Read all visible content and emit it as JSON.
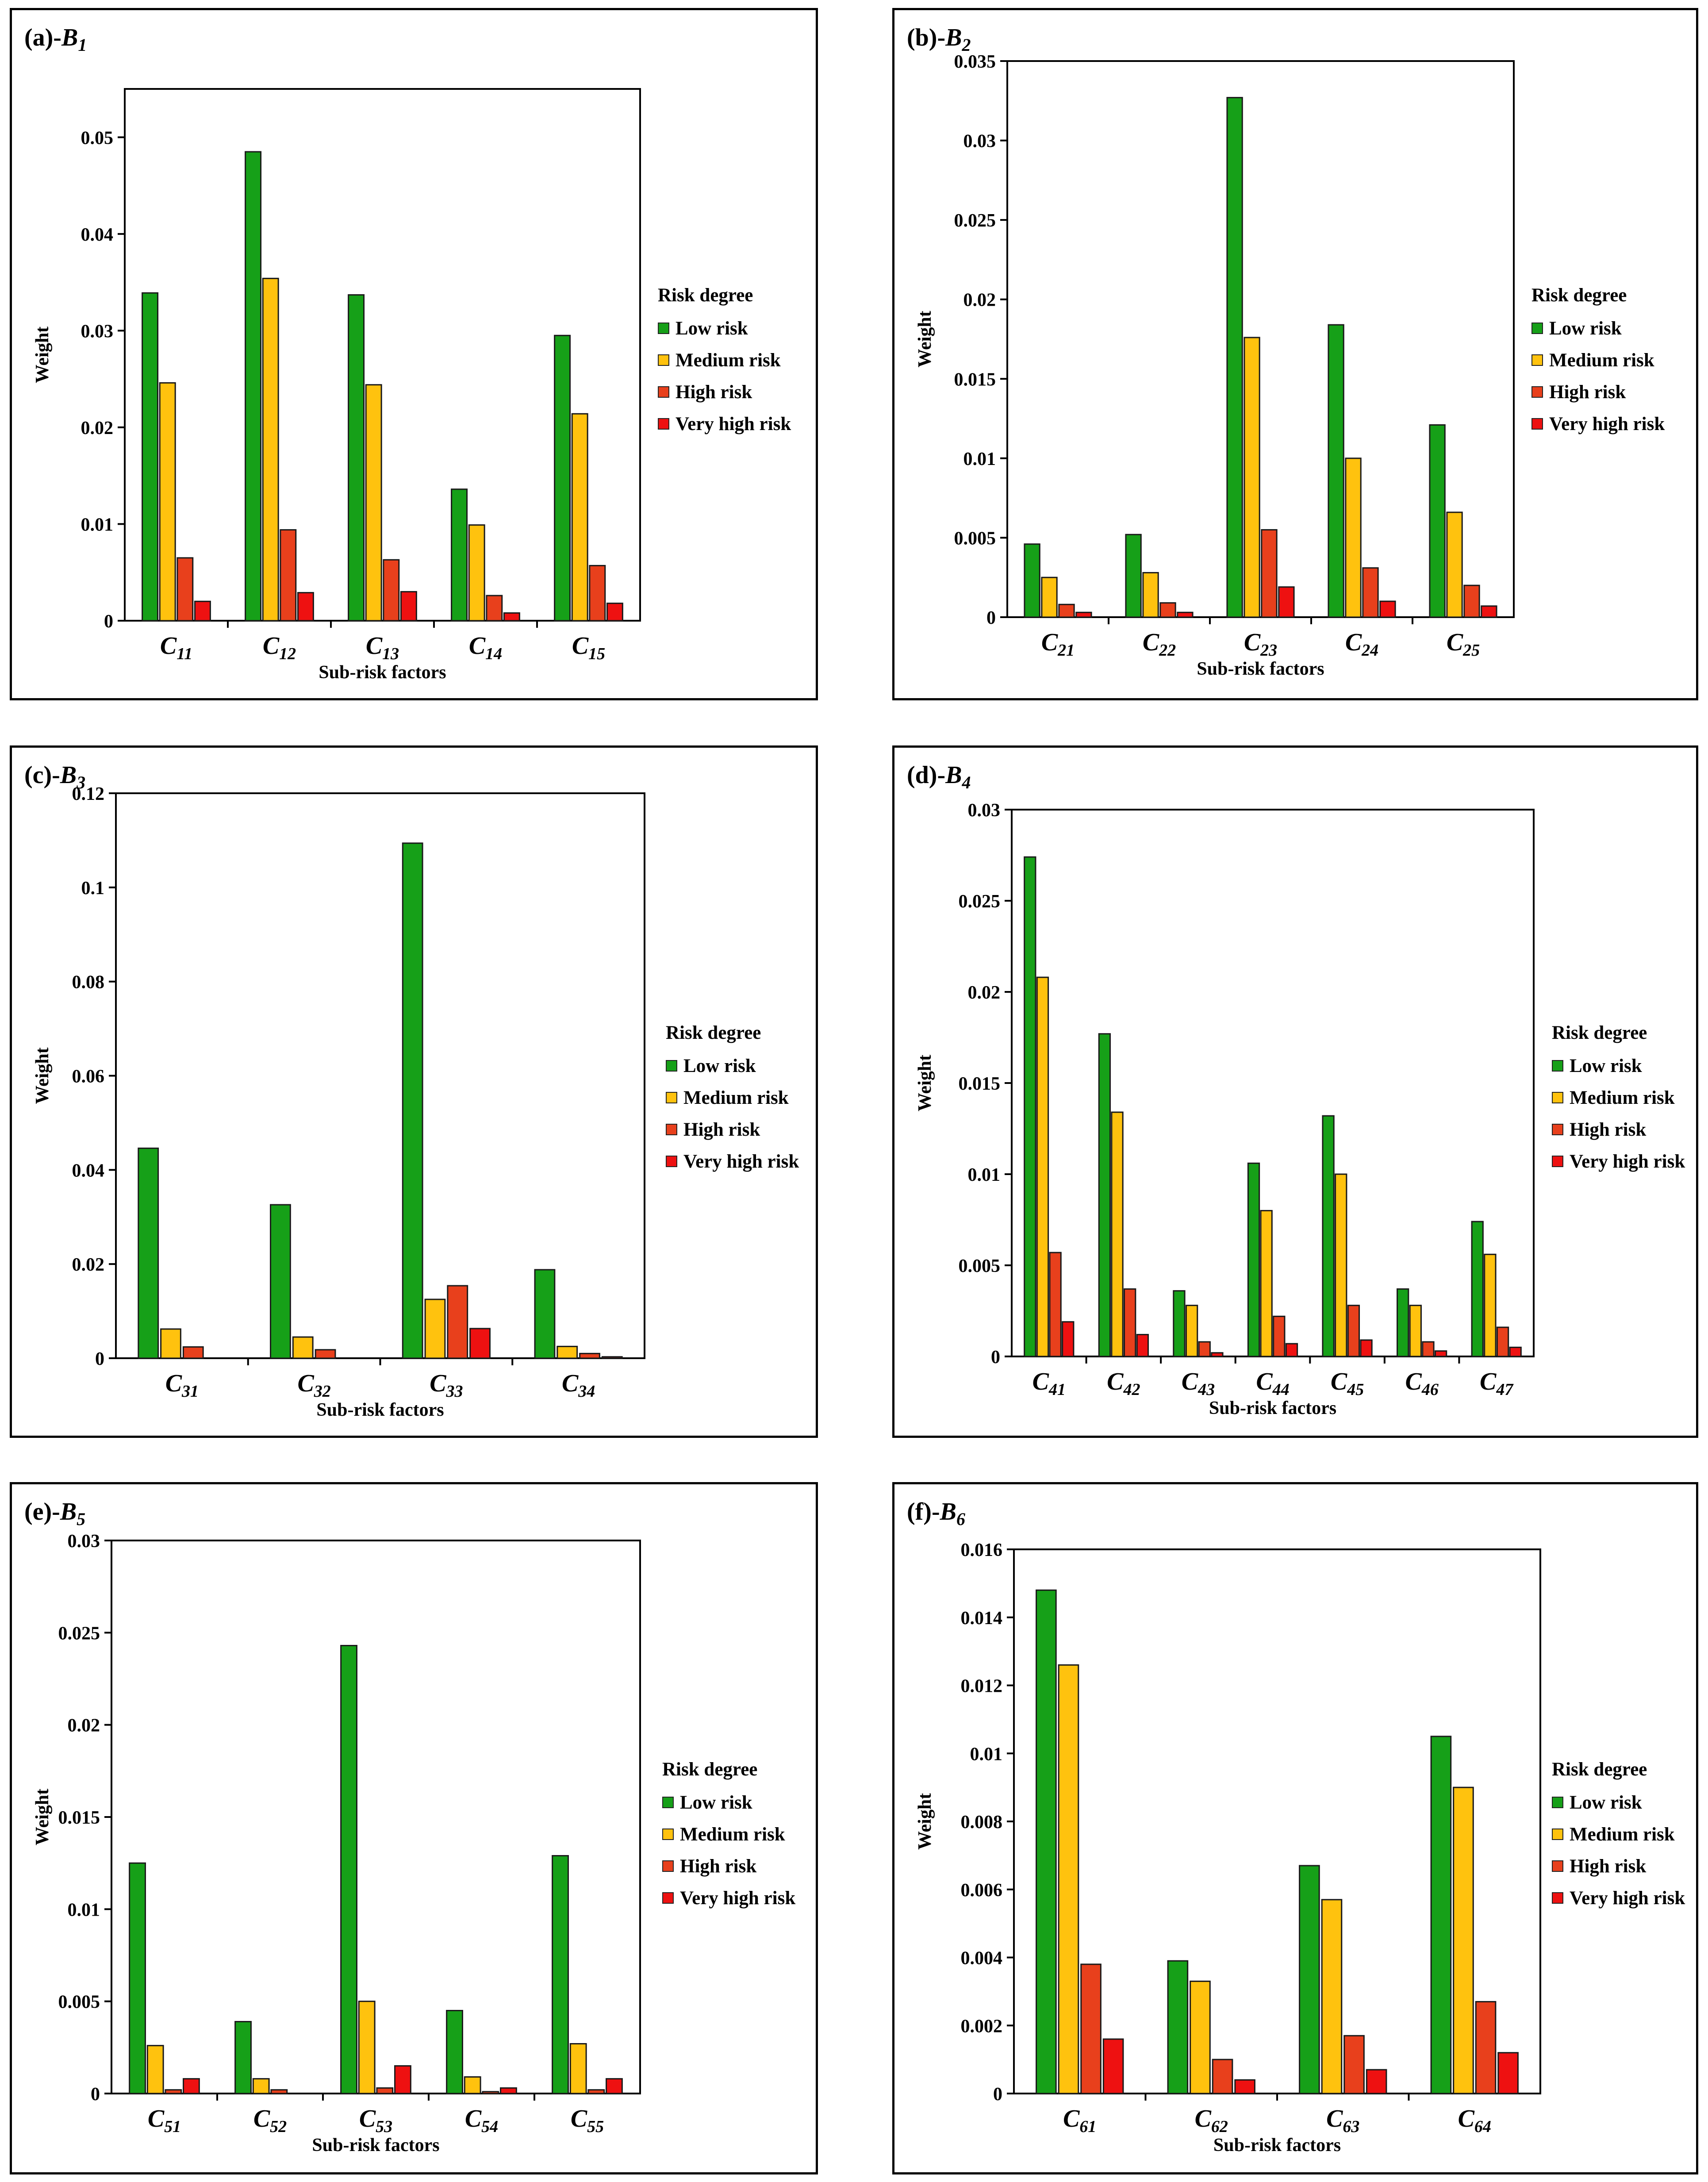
{
  "legend": {
    "title": "Risk degree",
    "items": [
      {
        "label": "Low risk",
        "color": "#16a018"
      },
      {
        "label": "Medium risk",
        "color": "#ffc20e"
      },
      {
        "label": "High risk",
        "color": "#e8401c"
      },
      {
        "label": "Very high risk",
        "color": "#ee1111"
      }
    ]
  },
  "chart_data": [
    {
      "type": "bar",
      "panel_label": "(a)-",
      "group_letter": "B",
      "group_index": "1",
      "xlabel": "Sub-risk factors",
      "ylabel": "Weight",
      "ylim": [
        0,
        0.055
      ],
      "yticks": [
        "0",
        "0.01",
        "0.02",
        "0.03",
        "0.04",
        "0.05"
      ],
      "ytick_values": [
        0,
        0.01,
        0.02,
        0.03,
        0.04,
        0.05
      ],
      "categories": [
        {
          "letter": "C",
          "index": "11"
        },
        {
          "letter": "C",
          "index": "12"
        },
        {
          "letter": "C",
          "index": "13"
        },
        {
          "letter": "C",
          "index": "14"
        },
        {
          "letter": "C",
          "index": "15"
        }
      ],
      "series": [
        {
          "name": "Low risk",
          "values": [
            0.0339,
            0.0485,
            0.0337,
            0.0136,
            0.0295
          ]
        },
        {
          "name": "Medium risk",
          "values": [
            0.0246,
            0.0354,
            0.0244,
            0.0099,
            0.0214
          ]
        },
        {
          "name": "High risk",
          "values": [
            0.0065,
            0.0094,
            0.0063,
            0.0026,
            0.0057
          ]
        },
        {
          "name": "Very high risk",
          "values": [
            0.002,
            0.0029,
            0.003,
            0.0008,
            0.0018
          ]
        }
      ]
    },
    {
      "type": "bar",
      "panel_label": "(b)-",
      "group_letter": "B",
      "group_index": "2",
      "xlabel": "Sub-risk factors",
      "ylabel": "Weight",
      "ylim": [
        0,
        0.035
      ],
      "yticks": [
        "0",
        "0.005",
        "0.01",
        "0.015",
        "0.02",
        "0.025",
        "0.03",
        "0.035"
      ],
      "ytick_values": [
        0,
        0.005,
        0.01,
        0.015,
        0.02,
        0.025,
        0.03,
        0.035
      ],
      "categories": [
        {
          "letter": "C",
          "index": "21"
        },
        {
          "letter": "C",
          "index": "22"
        },
        {
          "letter": "C",
          "index": "23"
        },
        {
          "letter": "C",
          "index": "24"
        },
        {
          "letter": "C",
          "index": "25"
        }
      ],
      "series": [
        {
          "name": "Low risk",
          "values": [
            0.0046,
            0.0052,
            0.0327,
            0.0184,
            0.0121
          ]
        },
        {
          "name": "Medium risk",
          "values": [
            0.0025,
            0.0028,
            0.0176,
            0.01,
            0.0066
          ]
        },
        {
          "name": "High risk",
          "values": [
            0.0008,
            0.0009,
            0.0055,
            0.0031,
            0.002
          ]
        },
        {
          "name": "Very high risk",
          "values": [
            0.0003,
            0.0003,
            0.0019,
            0.001,
            0.0007
          ]
        }
      ]
    },
    {
      "type": "bar",
      "panel_label": "(c)-",
      "group_letter": "B",
      "group_index": "3",
      "xlabel": "Sub-risk factors",
      "ylabel": "Weight",
      "ylim": [
        0,
        0.12
      ],
      "yticks": [
        "0",
        "0.02",
        "0.04",
        "0.06",
        "0.08",
        "0.1",
        "0.12"
      ],
      "ytick_values": [
        0,
        0.02,
        0.04,
        0.06,
        0.08,
        0.1,
        0.12
      ],
      "categories": [
        {
          "letter": "C",
          "index": "31"
        },
        {
          "letter": "C",
          "index": "32"
        },
        {
          "letter": "C",
          "index": "33"
        },
        {
          "letter": "C",
          "index": "34"
        }
      ],
      "series": [
        {
          "name": "Low risk",
          "values": [
            0.0446,
            0.0326,
            0.1094,
            0.0188
          ]
        },
        {
          "name": "Medium risk",
          "values": [
            0.0062,
            0.0045,
            0.0125,
            0.0025
          ]
        },
        {
          "name": "High risk",
          "values": [
            0.0024,
            0.0018,
            0.0154,
            0.001
          ]
        },
        {
          "name": "Very high risk",
          "values": [
            0.0,
            0.0,
            0.0063,
            0.0003
          ]
        }
      ]
    },
    {
      "type": "bar",
      "panel_label": "(d)-",
      "group_letter": "B",
      "group_index": "4",
      "xlabel": "Sub-risk factors",
      "ylabel": "Weight",
      "ylim": [
        0,
        0.03
      ],
      "yticks": [
        "0",
        "0.005",
        "0.01",
        "0.015",
        "0.02",
        "0.025",
        "0.03"
      ],
      "ytick_values": [
        0,
        0.005,
        0.01,
        0.015,
        0.02,
        0.025,
        0.03
      ],
      "categories": [
        {
          "letter": "C",
          "index": "41"
        },
        {
          "letter": "C",
          "index": "42"
        },
        {
          "letter": "C",
          "index": "43"
        },
        {
          "letter": "C",
          "index": "44"
        },
        {
          "letter": "C",
          "index": "45"
        },
        {
          "letter": "C",
          "index": "46"
        },
        {
          "letter": "C",
          "index": "47"
        }
      ],
      "series": [
        {
          "name": "Low risk",
          "values": [
            0.0274,
            0.0177,
            0.0036,
            0.0106,
            0.0132,
            0.0037,
            0.0074
          ]
        },
        {
          "name": "Medium risk",
          "values": [
            0.0208,
            0.0134,
            0.0028,
            0.008,
            0.01,
            0.0028,
            0.0056
          ]
        },
        {
          "name": "High risk",
          "values": [
            0.0057,
            0.0037,
            0.0008,
            0.0022,
            0.0028,
            0.0008,
            0.0016
          ]
        },
        {
          "name": "Very high risk",
          "values": [
            0.0019,
            0.0012,
            0.0002,
            0.0007,
            0.0009,
            0.0003,
            0.0005
          ]
        }
      ]
    },
    {
      "type": "bar",
      "panel_label": "(e)-",
      "group_letter": "B",
      "group_index": "5",
      "xlabel": "Sub-risk factors",
      "ylabel": "Weight",
      "ylim": [
        0,
        0.03
      ],
      "yticks": [
        "0",
        "0.005",
        "0.01",
        "0.015",
        "0.02",
        "0.025",
        "0.03"
      ],
      "ytick_values": [
        0,
        0.005,
        0.01,
        0.015,
        0.02,
        0.025,
        0.03
      ],
      "categories": [
        {
          "letter": "C",
          "index": "51"
        },
        {
          "letter": "C",
          "index": "52"
        },
        {
          "letter": "C",
          "index": "53"
        },
        {
          "letter": "C",
          "index": "54"
        },
        {
          "letter": "C",
          "index": "55"
        }
      ],
      "series": [
        {
          "name": "Low risk",
          "values": [
            0.0125,
            0.0039,
            0.0243,
            0.0045,
            0.0129
          ]
        },
        {
          "name": "Medium risk",
          "values": [
            0.0026,
            0.0008,
            0.005,
            0.0009,
            0.0027
          ]
        },
        {
          "name": "High risk",
          "values": [
            0.0002,
            0.0002,
            0.0003,
            0.0001,
            0.0002
          ]
        },
        {
          "name": "Very high risk",
          "values": [
            0.0008,
            0.0,
            0.0015,
            0.0003,
            0.0008
          ]
        }
      ]
    },
    {
      "type": "bar",
      "panel_label": "(f)-",
      "group_letter": "B",
      "group_index": "6",
      "xlabel": "Sub-risk factors",
      "ylabel": "Weight",
      "ylim": [
        0,
        0.016
      ],
      "yticks": [
        "0",
        "0.002",
        "0.004",
        "0.006",
        "0.008",
        "0.01",
        "0.012",
        "0.014",
        "0.016"
      ],
      "ytick_values": [
        0,
        0.002,
        0.004,
        0.006,
        0.008,
        0.01,
        0.012,
        0.014,
        0.016
      ],
      "categories": [
        {
          "letter": "C",
          "index": "61"
        },
        {
          "letter": "C",
          "index": "62"
        },
        {
          "letter": "C",
          "index": "63"
        },
        {
          "letter": "C",
          "index": "64"
        }
      ],
      "series": [
        {
          "name": "Low risk",
          "values": [
            0.0148,
            0.0039,
            0.0067,
            0.0105
          ]
        },
        {
          "name": "Medium risk",
          "values": [
            0.0126,
            0.0033,
            0.0057,
            0.009
          ]
        },
        {
          "name": "High risk",
          "values": [
            0.0038,
            0.001,
            0.0017,
            0.0027
          ]
        },
        {
          "name": "Very high risk",
          "values": [
            0.0016,
            0.0004,
            0.0007,
            0.0012
          ]
        }
      ]
    }
  ]
}
